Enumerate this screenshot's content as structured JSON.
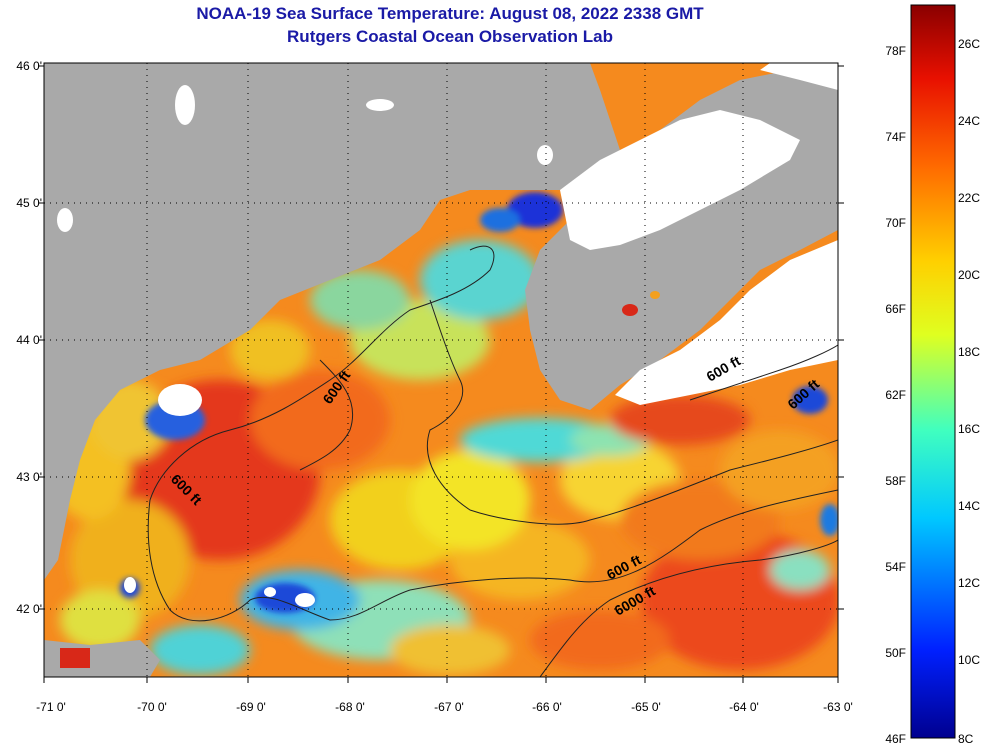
{
  "title": "NOAA-19 Sea Surface Temperature:  August 08, 2022 2338 GMT",
  "subtitle": "Rutgers Coastal Ocean Observation Lab",
  "lat_ticks": [
    "46 0'",
    "45 0'",
    "44 0'",
    "43 0'",
    "42 0'"
  ],
  "lon_ticks": [
    "-71 0'",
    "-70 0'",
    "-69 0'",
    "-68 0'",
    "-67 0'",
    "-66 0'",
    "-65 0'",
    "-64 0'",
    "-63 0'"
  ],
  "contour_labels": [
    "600 ft",
    "600 ft",
    "600 ft",
    "600 ft",
    "600 ft",
    "6000 ft"
  ],
  "colorbar": {
    "fahrenheit": [
      "78F",
      "74F",
      "70F",
      "66F",
      "62F",
      "58F",
      "54F",
      "50F",
      "46F"
    ],
    "celsius": [
      "26C",
      "24C",
      "22C",
      "20C",
      "18C",
      "16C",
      "14C",
      "12C",
      "10C",
      "8C"
    ]
  },
  "colors": {
    "land": "#a9a9a9",
    "cloud": "#ffffff",
    "title": "#1a1aa6",
    "warm": "#e8341a",
    "orange": "#f58a1e",
    "yellow": "#f2e21a",
    "cyan": "#2fd9d6",
    "blue": "#1537d6"
  }
}
